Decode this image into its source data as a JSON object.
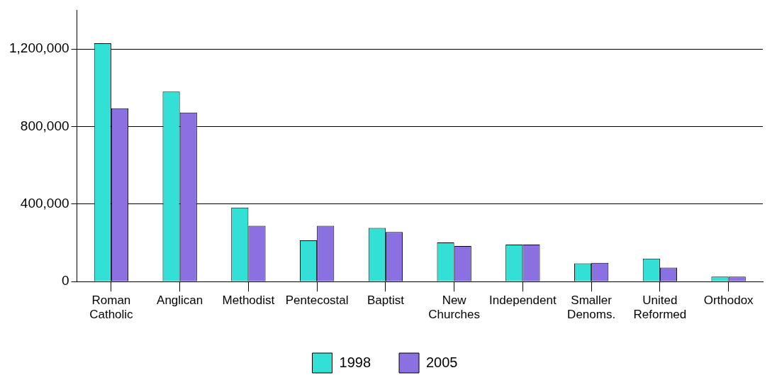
{
  "chart_data": {
    "type": "bar",
    "categories": [
      "Roman Catholic",
      "Anglican",
      "Methodist",
      "Pentecostal",
      "Baptist",
      "New Churches",
      "Independent",
      "Smaller Denoms.",
      "United Reformed",
      "Orthodox"
    ],
    "series": [
      {
        "name": "1998",
        "color": "#33e0d6",
        "values": [
          1230000,
          980000,
          382000,
          213000,
          277000,
          202000,
          191000,
          94000,
          119000,
          25000
        ]
      },
      {
        "name": "2005",
        "color": "#8a70e0",
        "values": [
          894000,
          872000,
          288000,
          288000,
          256000,
          184000,
          191000,
          97000,
          72000,
          25000
        ]
      }
    ],
    "ylim": [
      0,
      1400000
    ],
    "yticks": [
      0,
      {
        "value": 400000,
        "label": "400,000"
      },
      {
        "value": 800000,
        "label": "800,000"
      },
      {
        "value": 1200000,
        "label": "1,200,000"
      }
    ],
    "grid": "y",
    "legend": "bottom"
  }
}
